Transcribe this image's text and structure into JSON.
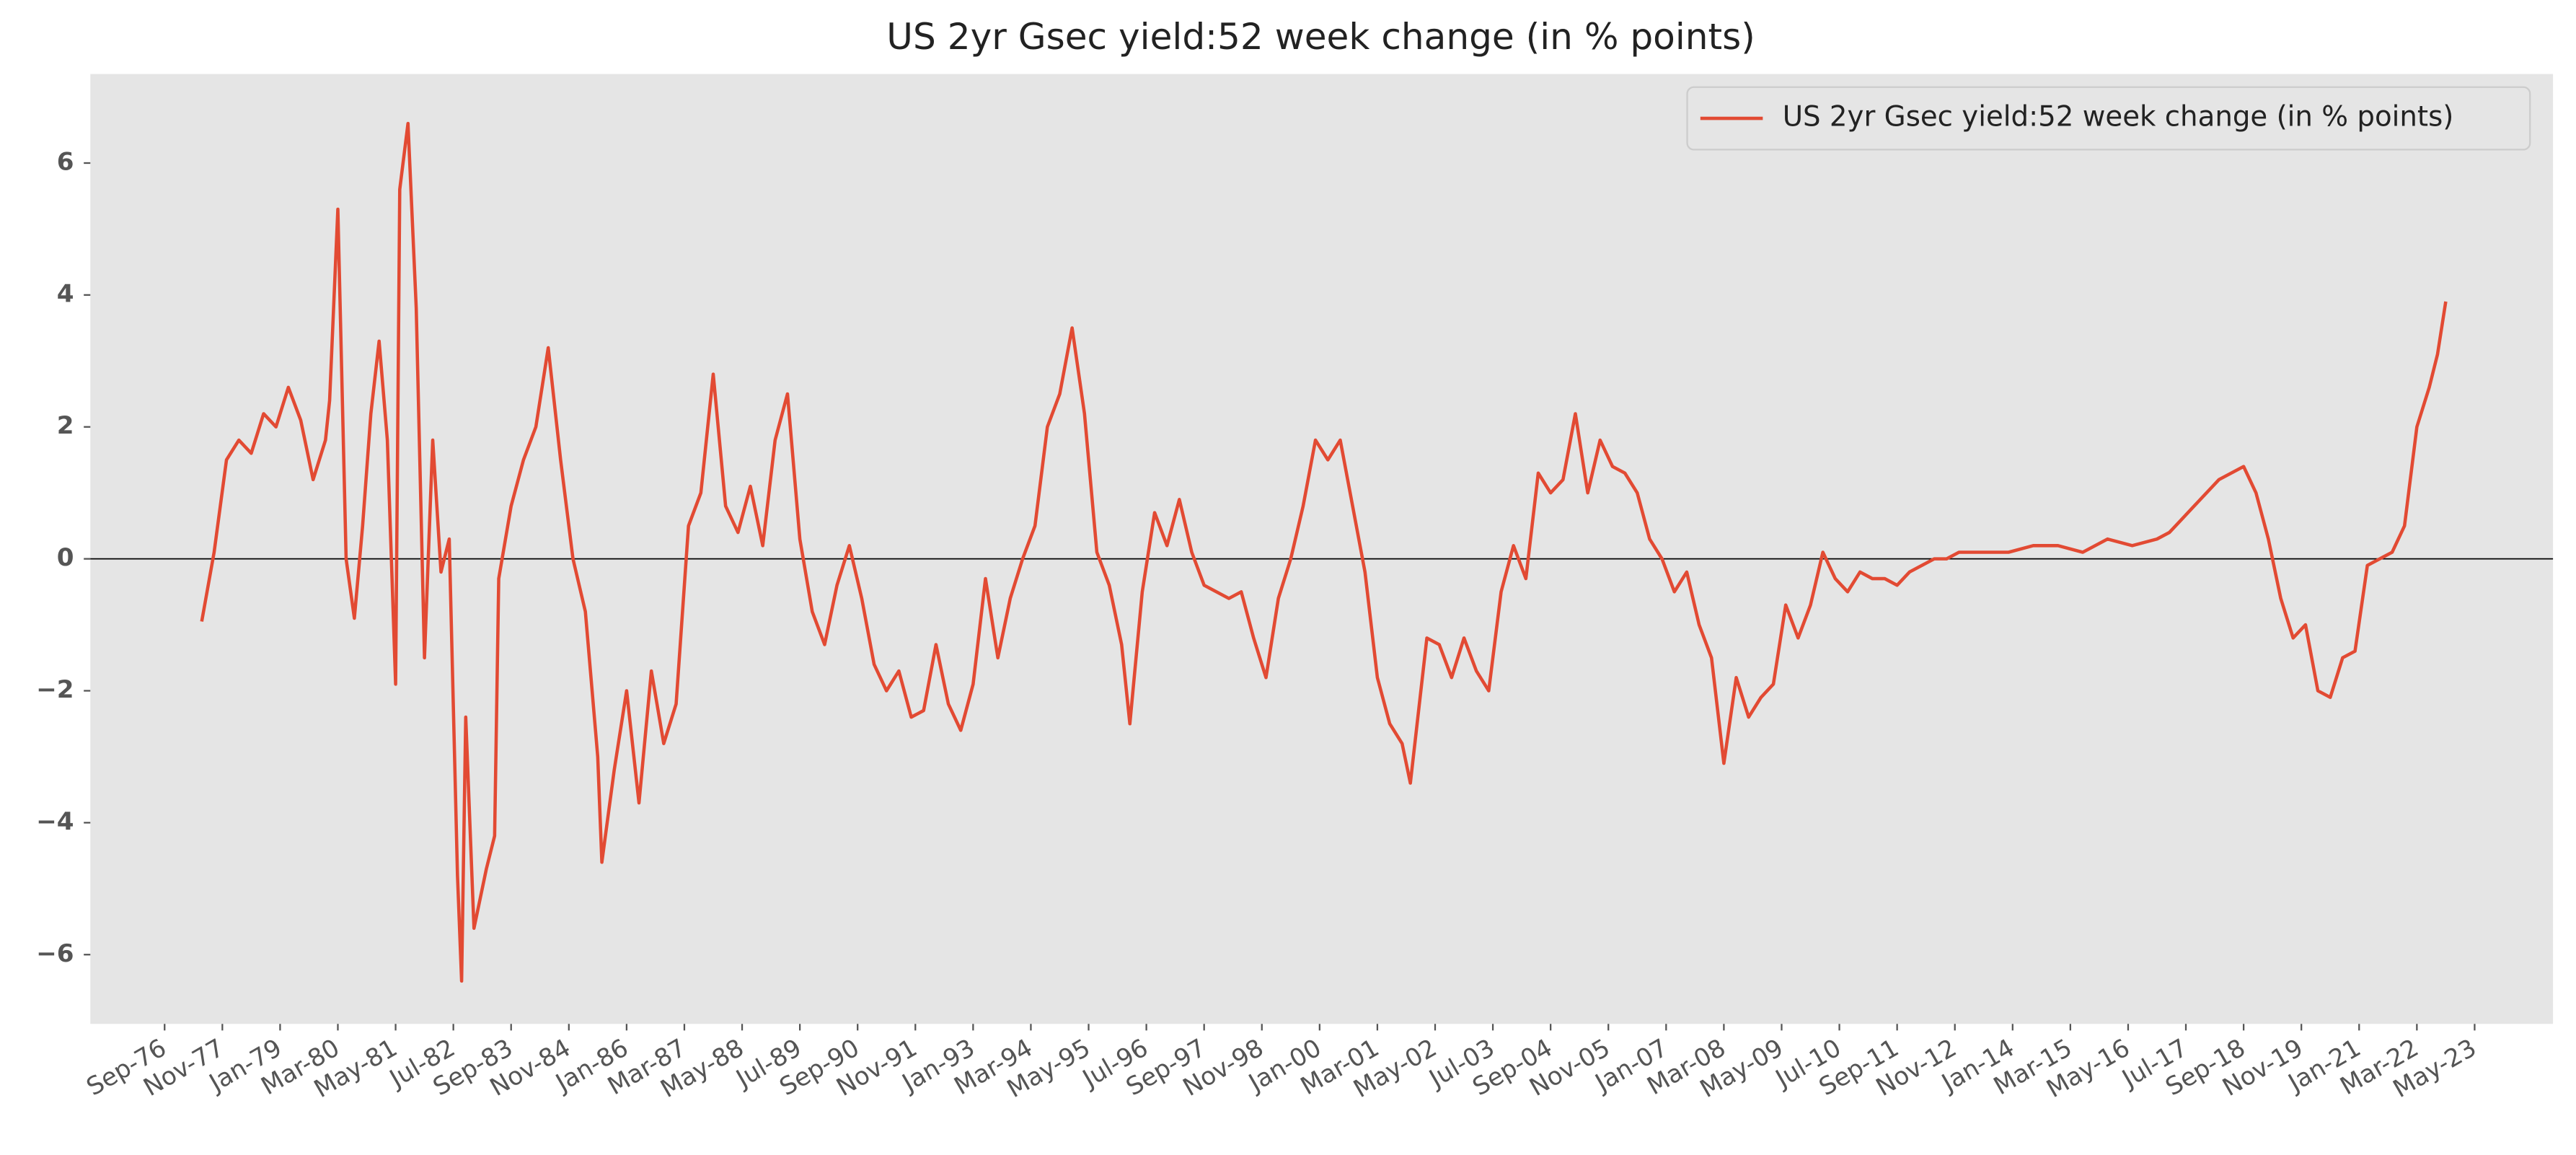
{
  "chart_data": {
    "type": "line",
    "title": "US 2yr Gsec yield:52 week change (in % points)",
    "x": [
      "1977-06",
      "1977-09",
      "1977-12",
      "1978-03",
      "1978-06",
      "1978-09",
      "1978-12",
      "1979-03",
      "1979-06",
      "1979-09",
      "1979-12",
      "1980-01",
      "1980-03",
      "1980-05",
      "1980-07",
      "1980-09",
      "1980-11",
      "1981-01",
      "1981-03",
      "1981-05",
      "1981-06",
      "1981-08",
      "1981-10",
      "1981-12",
      "1982-02",
      "1982-04",
      "1982-06",
      "1982-08",
      "1982-09",
      "1982-10",
      "1982-12",
      "1983-03",
      "1983-05",
      "1983-06",
      "1983-09",
      "1983-12",
      "1984-03",
      "1984-06",
      "1984-09",
      "1984-12",
      "1985-03",
      "1985-06",
      "1985-07",
      "1985-10",
      "1986-01",
      "1986-04",
      "1986-07",
      "1986-10",
      "1987-01",
      "1987-04",
      "1987-07",
      "1987-10",
      "1988-01",
      "1988-04",
      "1988-07",
      "1988-10",
      "1989-01",
      "1989-04",
      "1989-07",
      "1989-10",
      "1990-01",
      "1990-04",
      "1990-07",
      "1990-10",
      "1991-01",
      "1991-04",
      "1991-07",
      "1991-10",
      "1992-01",
      "1992-04",
      "1992-07",
      "1992-10",
      "1993-01",
      "1993-04",
      "1993-07",
      "1993-10",
      "1994-01",
      "1994-04",
      "1994-07",
      "1994-10",
      "1995-01",
      "1995-04",
      "1995-07",
      "1995-10",
      "1996-01",
      "1996-03",
      "1996-06",
      "1996-09",
      "1996-12",
      "1997-03",
      "1997-06",
      "1997-09",
      "1997-12",
      "1998-03",
      "1998-06",
      "1998-09",
      "1998-12",
      "1999-03",
      "1999-06",
      "1999-09",
      "1999-12",
      "2000-03",
      "2000-06",
      "2000-09",
      "2000-12",
      "2001-03",
      "2001-06",
      "2001-09",
      "2001-11",
      "2002-03",
      "2002-06",
      "2002-09",
      "2002-12",
      "2003-03",
      "2003-06",
      "2003-09",
      "2003-12",
      "2004-03",
      "2004-06",
      "2004-09",
      "2004-12",
      "2005-03",
      "2005-06",
      "2005-09",
      "2005-12",
      "2006-03",
      "2006-06",
      "2006-09",
      "2006-12",
      "2007-03",
      "2007-06",
      "2007-09",
      "2007-12",
      "2008-03",
      "2008-06",
      "2008-09",
      "2008-12",
      "2009-03",
      "2009-06",
      "2009-09",
      "2009-12",
      "2010-03",
      "2010-06",
      "2010-09",
      "2010-12",
      "2011-03",
      "2011-06",
      "2011-09",
      "2011-12",
      "2012-03",
      "2012-06",
      "2012-09",
      "2012-12",
      "2013-06",
      "2013-12",
      "2014-06",
      "2014-12",
      "2015-06",
      "2015-12",
      "2016-06",
      "2016-12",
      "2017-03",
      "2017-06",
      "2017-09",
      "2017-12",
      "2018-03",
      "2018-06",
      "2018-09",
      "2018-12",
      "2019-03",
      "2019-06",
      "2019-09",
      "2019-12",
      "2020-03",
      "2020-06",
      "2020-09",
      "2020-12",
      "2021-03",
      "2021-06",
      "2021-09",
      "2021-12",
      "2022-03",
      "2022-06",
      "2022-08",
      "2022-10"
    ],
    "series": [
      {
        "name": "US 2yr Gsec yield:52 week change (in % points)",
        "color": "#e24a33",
        "values": [
          -0.95,
          0.1,
          1.5,
          1.8,
          1.6,
          2.2,
          2.0,
          2.6,
          2.1,
          1.2,
          1.8,
          2.4,
          5.3,
          0.0,
          -0.9,
          0.5,
          2.2,
          3.3,
          1.8,
          -1.9,
          5.6,
          6.6,
          3.8,
          -1.5,
          1.8,
          -0.2,
          0.3,
          -4.8,
          -6.4,
          -2.4,
          -5.6,
          -4.7,
          -4.2,
          -0.3,
          0.8,
          1.5,
          2.0,
          3.2,
          1.5,
          0.0,
          -0.8,
          -3.0,
          -4.6,
          -3.2,
          -2.0,
          -3.7,
          -1.7,
          -2.8,
          -2.2,
          0.5,
          1.0,
          2.8,
          0.8,
          0.4,
          1.1,
          0.2,
          1.8,
          2.5,
          0.3,
          -0.8,
          -1.3,
          -0.4,
          0.2,
          -0.6,
          -1.6,
          -2.0,
          -1.7,
          -2.4,
          -2.3,
          -1.3,
          -2.2,
          -2.6,
          -1.9,
          -0.3,
          -1.5,
          -0.6,
          0.0,
          0.5,
          2.0,
          2.5,
          3.5,
          2.2,
          0.1,
          -0.4,
          -1.3,
          -2.5,
          -0.5,
          0.7,
          0.2,
          0.9,
          0.1,
          -0.4,
          -0.5,
          -0.6,
          -0.5,
          -1.2,
          -1.8,
          -0.6,
          0.0,
          0.8,
          1.8,
          1.5,
          1.8,
          0.8,
          -0.2,
          -1.8,
          -2.5,
          -2.8,
          -3.4,
          -1.2,
          -1.3,
          -1.8,
          -1.2,
          -1.7,
          -2.0,
          -0.5,
          0.2,
          -0.3,
          1.3,
          1.0,
          1.2,
          2.2,
          1.0,
          1.8,
          1.4,
          1.3,
          1.0,
          0.3,
          0.0,
          -0.5,
          -0.2,
          -1.0,
          -1.5,
          -3.1,
          -1.8,
          -2.4,
          -2.1,
          -1.9,
          -0.7,
          -1.2,
          -0.7,
          0.1,
          -0.3,
          -0.5,
          -0.2,
          -0.3,
          -0.3,
          -0.4,
          -0.2,
          -0.1,
          0.0,
          0.0,
          0.1,
          0.1,
          0.1,
          0.2,
          0.2,
          0.1,
          0.3,
          0.2,
          0.3,
          0.4,
          0.6,
          0.8,
          1.0,
          1.2,
          1.3,
          1.4,
          1.0,
          0.3,
          -0.6,
          -1.2,
          -1.0,
          -2.0,
          -2.1,
          -1.5,
          -1.4,
          -0.1,
          0.0,
          0.1,
          0.5,
          2.0,
          2.6,
          3.1,
          3.9
        ]
      }
    ],
    "hline": 0,
    "xlim": [
      "1975-03",
      "2024-12"
    ],
    "xticks": [
      {
        "value": "1976-09",
        "label": "Sep-76"
      },
      {
        "value": "1977-11",
        "label": "Nov-77"
      },
      {
        "value": "1979-01",
        "label": "Jan-79"
      },
      {
        "value": "1980-03",
        "label": "Mar-80"
      },
      {
        "value": "1981-05",
        "label": "May-81"
      },
      {
        "value": "1982-07",
        "label": "Jul-82"
      },
      {
        "value": "1983-09",
        "label": "Sep-83"
      },
      {
        "value": "1984-11",
        "label": "Nov-84"
      },
      {
        "value": "1986-01",
        "label": "Jan-86"
      },
      {
        "value": "1987-03",
        "label": "Mar-87"
      },
      {
        "value": "1988-05",
        "label": "May-88"
      },
      {
        "value": "1989-07",
        "label": "Jul-89"
      },
      {
        "value": "1990-09",
        "label": "Sep-90"
      },
      {
        "value": "1991-11",
        "label": "Nov-91"
      },
      {
        "value": "1993-01",
        "label": "Jan-93"
      },
      {
        "value": "1994-03",
        "label": "Mar-94"
      },
      {
        "value": "1995-05",
        "label": "May-95"
      },
      {
        "value": "1996-07",
        "label": "Jul-96"
      },
      {
        "value": "1997-09",
        "label": "Sep-97"
      },
      {
        "value": "1998-11",
        "label": "Nov-98"
      },
      {
        "value": "2000-01",
        "label": "Jan-00"
      },
      {
        "value": "2001-03",
        "label": "Mar-01"
      },
      {
        "value": "2002-05",
        "label": "May-02"
      },
      {
        "value": "2003-07",
        "label": "Jul-03"
      },
      {
        "value": "2004-09",
        "label": "Sep-04"
      },
      {
        "value": "2005-11",
        "label": "Nov-05"
      },
      {
        "value": "2007-01",
        "label": "Jan-07"
      },
      {
        "value": "2008-03",
        "label": "Mar-08"
      },
      {
        "value": "2009-05",
        "label": "May-09"
      },
      {
        "value": "2010-07",
        "label": "Jul-10"
      },
      {
        "value": "2011-09",
        "label": "Sep-11"
      },
      {
        "value": "2012-11",
        "label": "Nov-12"
      },
      {
        "value": "2014-01",
        "label": "Jan-14"
      },
      {
        "value": "2015-03",
        "label": "Mar-15"
      },
      {
        "value": "2016-05",
        "label": "May-16"
      },
      {
        "value": "2017-07",
        "label": "Jul-17"
      },
      {
        "value": "2018-09",
        "label": "Sep-18"
      },
      {
        "value": "2019-11",
        "label": "Nov-19"
      },
      {
        "value": "2021-01",
        "label": "Jan-21"
      },
      {
        "value": "2022-03",
        "label": "Mar-22"
      },
      {
        "value": "2023-05",
        "label": "May-23"
      }
    ],
    "ylim": [
      -7.05,
      7.35
    ],
    "yticks": [
      {
        "value": -6,
        "label": "−6"
      },
      {
        "value": -4,
        "label": "−4"
      },
      {
        "value": -2,
        "label": "−2"
      },
      0,
      2,
      4,
      6
    ],
    "legend": "upper right",
    "grid": false
  }
}
